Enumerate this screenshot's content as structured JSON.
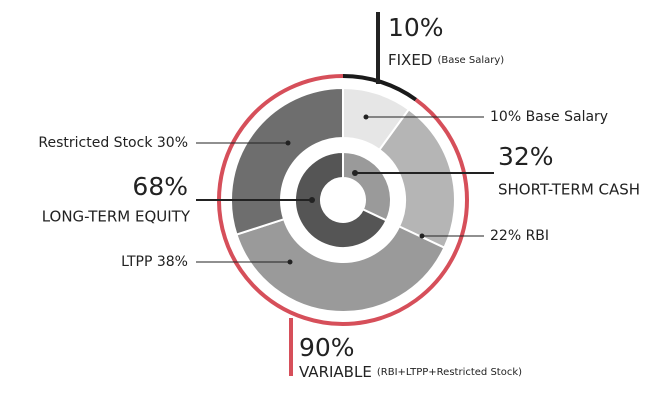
{
  "chart_data": {
    "type": "donut",
    "rings": [
      {
        "values": [
          10,
          22,
          38,
          30
        ],
        "value_labels": [
          "10% Base Salary",
          "22% RBI",
          "LTPP 38%",
          "Restricted Stock 30%"
        ],
        "colors": [
          "#e6e6e6",
          "#b5b5b5",
          "#9a9a9a",
          "#6e6e6e"
        ]
      },
      {
        "values": [
          32,
          68
        ],
        "value_labels": [
          "32%",
          "68%"
        ],
        "categories": [
          "SHORT-TERM CASH",
          "LONG-TERM EQUITY"
        ],
        "colors": [
          "#9a9a9a",
          "#555555"
        ]
      },
      {
        "values": [
          10,
          90
        ],
        "value_labels": [
          "10%",
          "90%"
        ],
        "categories": [
          "FIXED",
          "VARIABLE"
        ],
        "details": [
          "(Base Salary)",
          "(RBI+LTPP+Restricted Stock)"
        ],
        "colors": [
          "#1a1a1a",
          "#d64f5a"
        ]
      }
    ]
  }
}
